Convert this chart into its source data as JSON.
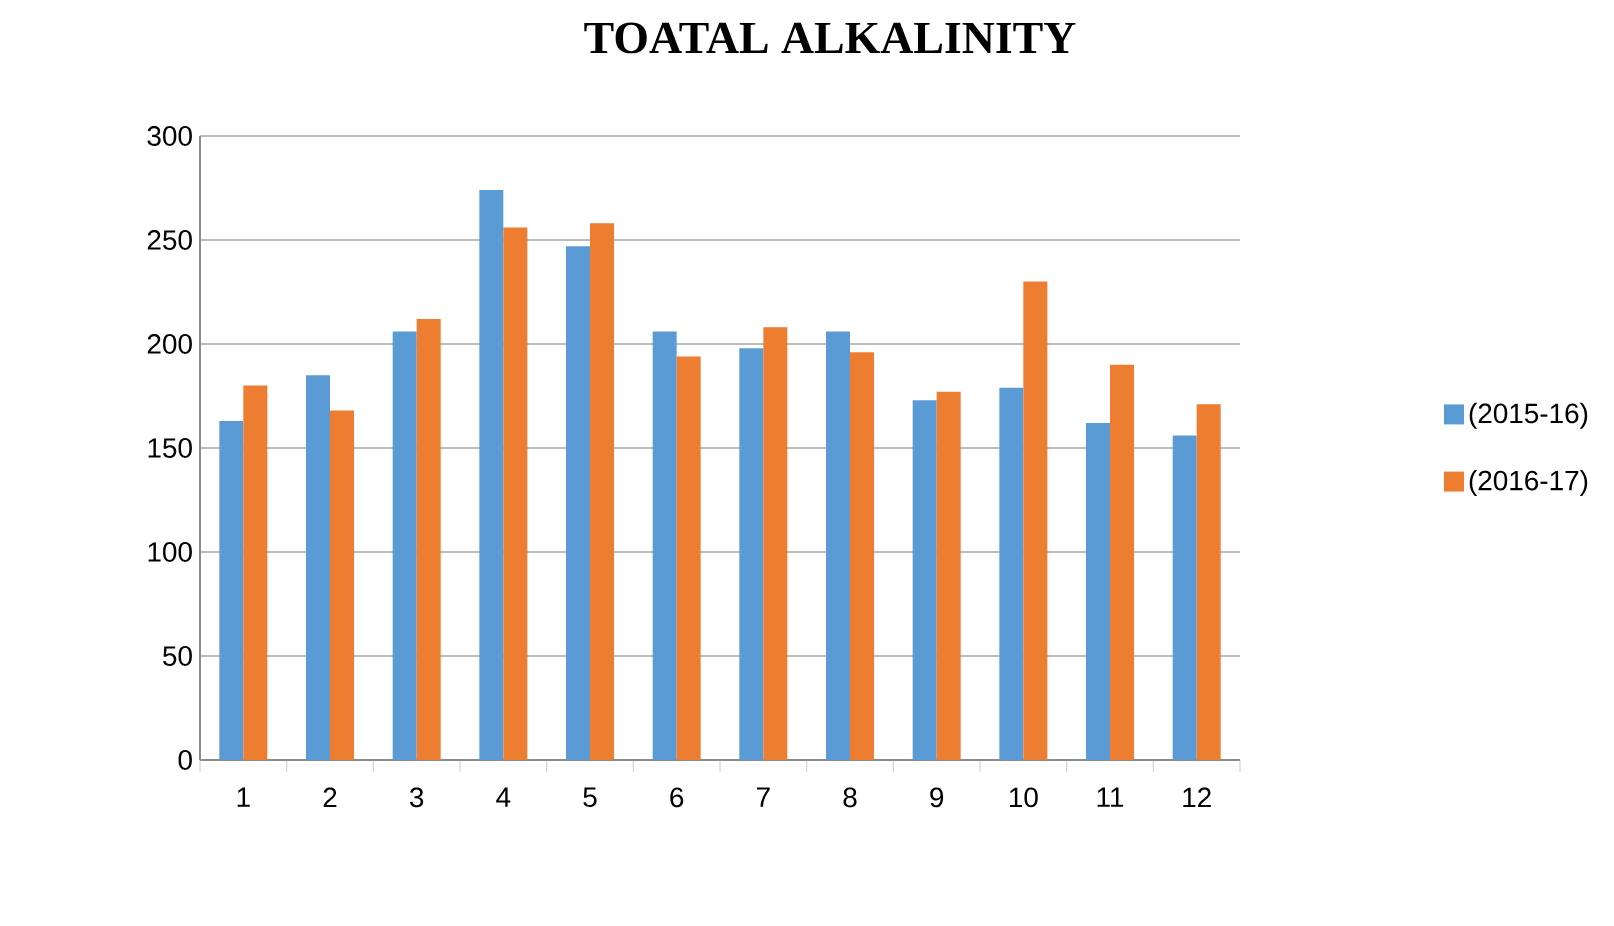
{
  "chart_data": {
    "type": "bar",
    "title": "TOATAL ALKALINITY",
    "categories": [
      "1",
      "2",
      "3",
      "4",
      "5",
      "6",
      "7",
      "8",
      "9",
      "10",
      "11",
      "12"
    ],
    "series": [
      {
        "name": "(2015-16)",
        "color": "#5b9bd5",
        "values": [
          163,
          185,
          206,
          274,
          247,
          206,
          198,
          206,
          173,
          179,
          162,
          156
        ]
      },
      {
        "name": "(2016-17)",
        "color": "#ed7d31",
        "values": [
          180,
          168,
          212,
          256,
          258,
          194,
          208,
          196,
          177,
          230,
          190,
          171
        ]
      }
    ],
    "ylim": [
      0,
      300
    ],
    "yticks": [
      0,
      50,
      100,
      150,
      200,
      250,
      300
    ],
    "grid": "y",
    "legend": "right"
  }
}
